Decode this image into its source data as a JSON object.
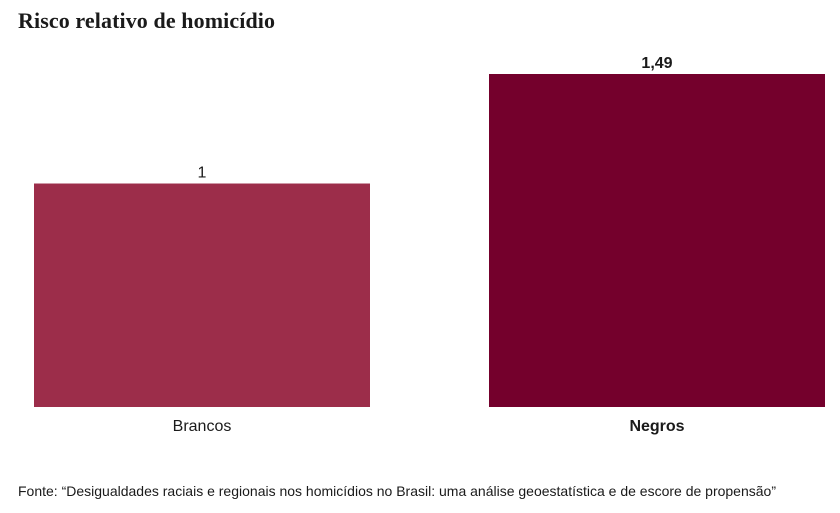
{
  "chart_data": {
    "type": "bar",
    "title": "Risco relativo de homicídio",
    "categories": [
      "Brancos",
      "Negros"
    ],
    "values": [
      1,
      1.49
    ],
    "value_labels": [
      "1",
      "1,49"
    ],
    "colors": [
      "#9c2d4a",
      "#74002c"
    ],
    "emphasized": [
      false,
      true
    ],
    "ylim": [
      0,
      1.49
    ],
    "xlabel": "",
    "ylabel": "",
    "grid": false,
    "legend": "none"
  },
  "source": "Fonte: “Desigualdades raciais e regionais nos homicídios no Brasil: uma análise geoestatística e de escore de propensão”"
}
